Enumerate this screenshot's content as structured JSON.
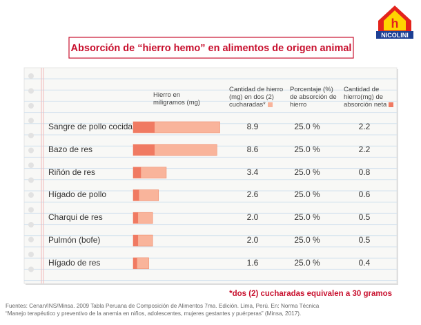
{
  "logo": "NICOLINI",
  "chart_data": {
    "type": "bar",
    "title": "Absorción de “hierro hemo” en alimentos de origen animal",
    "bar_header": "Hierro en miligramos (mg)",
    "categories": [
      "Sangre de pollo cocida",
      "Bazo de res",
      "Riñón de res",
      "Hígado de pollo",
      "Charqui de res",
      "Pulmón (bofe)",
      "Hígado de res"
    ],
    "series": [
      {
        "name": "Cantidad de hierro (mg) en dos (2) cucharadas*",
        "color": "#f9b49b",
        "values": [
          8.9,
          8.6,
          3.4,
          2.6,
          2.0,
          2.0,
          1.6
        ],
        "value_labels": [
          "8.9",
          "8.6",
          "3.4",
          "2.6",
          "2.0",
          "2.0",
          "1.6"
        ]
      },
      {
        "name": "Cantidad de hierro(mg) de absorción neta",
        "color": "#f07a62",
        "values": [
          2.2,
          2.2,
          0.8,
          0.6,
          0.5,
          0.5,
          0.4
        ]
      }
    ],
    "percent_column": {
      "name": "Porcentaje (%) de absorción de hierro",
      "values": [
        25,
        25,
        25,
        25,
        25,
        25,
        25
      ],
      "value_labels": [
        "25.0 %",
        "25.0 %",
        "25.0 %",
        "25.0 %",
        "25.0 %",
        "25.0 %",
        "25.0 %"
      ]
    },
    "footnote": "*dos (2) cucharadas equivalen a 30 gramos",
    "sources": [
      "Fuentes: Cenan/INS/Minsa. 2009 Tabla Peruana de Composición de Alimentos 7ma. Edición. Lima, Perú. En: Norma Técnica",
      "“Manejo terapéutico y preventivo de la anemia en niños, adolescentes, mujeres gestantes y puérperas” (Minsa, 2017)."
    ]
  }
}
